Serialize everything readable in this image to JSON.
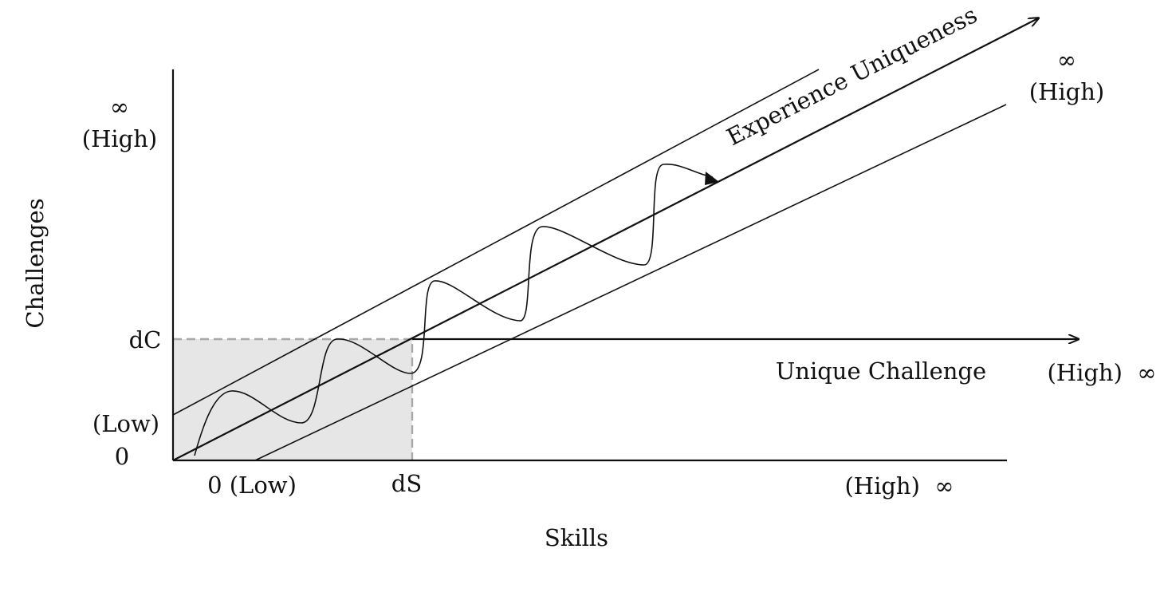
{
  "axes": {
    "y_title": "Challenges",
    "x_title": "Skills",
    "y_high_symbol": "∞",
    "y_high_label": "(High)",
    "y_dc": "dC",
    "y_low": "(Low)",
    "y_zero": "0",
    "x_low": "0 (Low)",
    "x_ds": "dS",
    "x_high": "(High)  ∞"
  },
  "arrows": {
    "diagonal_label": "Experience Uniqueness",
    "diagonal_high_symbol": "∞",
    "diagonal_high_label": "(High)",
    "horizontal_label": "Unique Challenge",
    "horizontal_high": "(High)  ∞"
  },
  "colors": {
    "ink": "#111111",
    "shaded_region": "#e6e6e6",
    "dashed_boundary": "#a8a8a8"
  }
}
